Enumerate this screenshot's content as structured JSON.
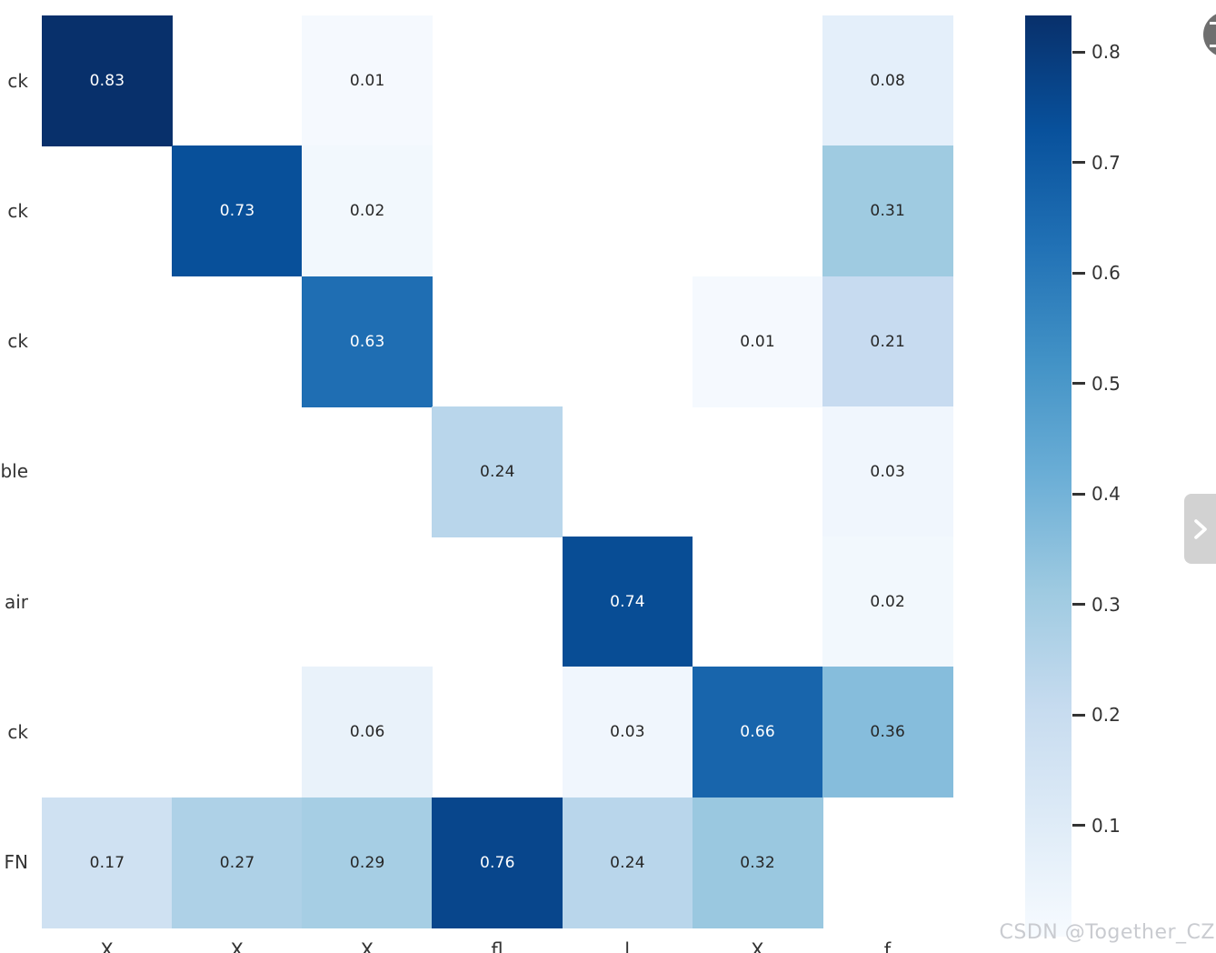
{
  "chart_data": {
    "type": "heatmap",
    "title": "",
    "xlabel": "",
    "ylabel": "",
    "colormap": "Blues",
    "vmin": 0.0,
    "vmax": 0.83,
    "grid": {
      "rows": 7,
      "cols": 7
    },
    "row_labels_visible": [
      "ck",
      "ck",
      "ck",
      "ble",
      "air",
      "ck",
      "FN"
    ],
    "x_tick_fragments_visible": [
      "X",
      "X",
      "X",
      "fl",
      "l",
      "X",
      "f"
    ],
    "empty_cell_value": 0,
    "empty_cell_color": "#ffffff",
    "cells": [
      {
        "row": 0,
        "col": 0,
        "value": "0.83",
        "bg": "#08306b",
        "fg": "#ffffff"
      },
      {
        "row": 0,
        "col": 2,
        "value": "0.01",
        "bg": "#f5f9fe",
        "fg": "#262626"
      },
      {
        "row": 0,
        "col": 6,
        "value": "0.08",
        "bg": "#e4effa",
        "fg": "#262626"
      },
      {
        "row": 1,
        "col": 1,
        "value": "0.73",
        "bg": "#08509a",
        "fg": "#ffffff"
      },
      {
        "row": 1,
        "col": 2,
        "value": "0.02",
        "bg": "#f2f8fd",
        "fg": "#262626"
      },
      {
        "row": 1,
        "col": 6,
        "value": "0.31",
        "bg": "#9fcbe1",
        "fg": "#262626"
      },
      {
        "row": 2,
        "col": 2,
        "value": "0.63",
        "bg": "#1f6eb3",
        "fg": "#ffffff"
      },
      {
        "row": 2,
        "col": 5,
        "value": "0.01",
        "bg": "#f5f9fe",
        "fg": "#262626"
      },
      {
        "row": 2,
        "col": 6,
        "value": "0.21",
        "bg": "#c7dbf0",
        "fg": "#262626"
      },
      {
        "row": 3,
        "col": 3,
        "value": "0.24",
        "bg": "#b9d6eb",
        "fg": "#262626"
      },
      {
        "row": 3,
        "col": 6,
        "value": "0.03",
        "bg": "#f0f6fd",
        "fg": "#262626"
      },
      {
        "row": 4,
        "col": 4,
        "value": "0.74",
        "bg": "#084d95",
        "fg": "#ffffff"
      },
      {
        "row": 4,
        "col": 6,
        "value": "0.02",
        "bg": "#f2f8fd",
        "fg": "#262626"
      },
      {
        "row": 5,
        "col": 2,
        "value": "0.06",
        "bg": "#e9f2fa",
        "fg": "#262626"
      },
      {
        "row": 5,
        "col": 4,
        "value": "0.03",
        "bg": "#f0f6fd",
        "fg": "#262626"
      },
      {
        "row": 5,
        "col": 5,
        "value": "0.66",
        "bg": "#1865ac",
        "fg": "#ffffff"
      },
      {
        "row": 5,
        "col": 6,
        "value": "0.36",
        "bg": "#86bddc",
        "fg": "#262626"
      },
      {
        "row": 6,
        "col": 0,
        "value": "0.17",
        "bg": "#cfe1f2",
        "fg": "#262626"
      },
      {
        "row": 6,
        "col": 1,
        "value": "0.27",
        "bg": "#aed1e7",
        "fg": "#262626"
      },
      {
        "row": 6,
        "col": 2,
        "value": "0.29",
        "bg": "#a6cee4",
        "fg": "#262626"
      },
      {
        "row": 6,
        "col": 3,
        "value": "0.76",
        "bg": "#08468c",
        "fg": "#ffffff"
      },
      {
        "row": 6,
        "col": 4,
        "value": "0.24",
        "bg": "#b9d6eb",
        "fg": "#262626"
      },
      {
        "row": 6,
        "col": 5,
        "value": "0.32",
        "bg": "#9ac8e0",
        "fg": "#262626"
      }
    ],
    "colorbar": {
      "position": "right",
      "tick_labels": [
        "0.8",
        "0.7",
        "0.6",
        "0.5",
        "0.4",
        "0.3",
        "0.2",
        "0.1"
      ],
      "gradient_stops_top_to_bottom": [
        "#08306b",
        "#08519c",
        "#2171b5",
        "#4292c6",
        "#6baed6",
        "#9ecae1",
        "#c6dbef",
        "#deebf7",
        "#f7fbff"
      ]
    }
  },
  "overlay": {
    "watermark_text": "CSDN @Together_CZ",
    "watermark_color": "#c9cbd0",
    "chevron_button_icon": "chevron-right",
    "float_button_icon": "csdn-panel"
  }
}
